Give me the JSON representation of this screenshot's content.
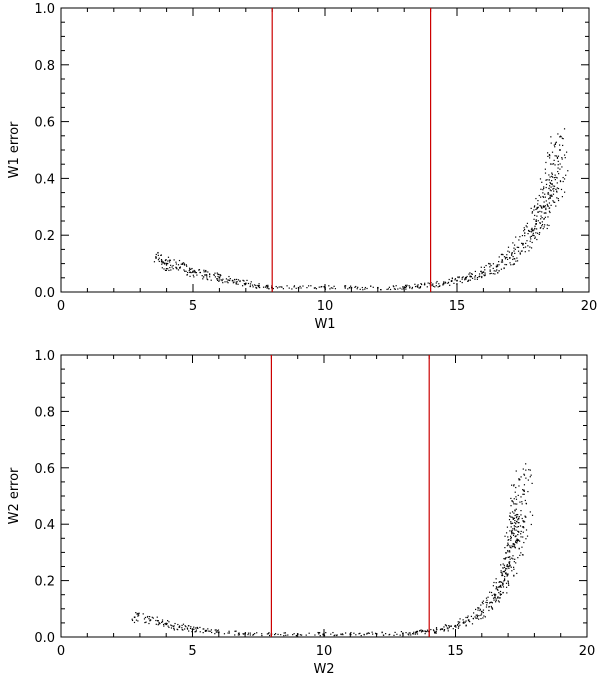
{
  "chart_data": [
    {
      "type": "scatter",
      "xlabel": "W1",
      "ylabel": "W1 error",
      "xlim": [
        0,
        20
      ],
      "ylim": [
        0,
        1.0
      ],
      "x_ticks": [
        "0",
        "5",
        "10",
        "15",
        "20"
      ],
      "y_ticks": [
        "0.0",
        "0.2",
        "0.4",
        "0.6",
        "0.8",
        "1.0"
      ],
      "vertical_lines": [
        8,
        14
      ],
      "vertical_line_color": "#cc0000",
      "point_color": "#000000",
      "series": [
        {
          "x": [
            3.6,
            4.0,
            4.5,
            5.0,
            5.5,
            6.0,
            6.5,
            7.0,
            7.5,
            8.0,
            9.0,
            10.0,
            11.0,
            12.0,
            13.0,
            13.5,
            14.0,
            14.5,
            15.0,
            15.5,
            16.0,
            16.5,
            17.0,
            17.5,
            18.0,
            18.3,
            18.6,
            18.9
          ],
          "y": [
            0.12,
            0.1,
            0.085,
            0.072,
            0.06,
            0.05,
            0.04,
            0.03,
            0.022,
            0.015,
            0.015,
            0.015,
            0.015,
            0.015,
            0.017,
            0.02,
            0.025,
            0.03,
            0.04,
            0.055,
            0.07,
            0.09,
            0.12,
            0.17,
            0.24,
            0.3,
            0.38,
            0.5
          ]
        }
      ]
    },
    {
      "type": "scatter",
      "xlabel": "W2",
      "ylabel": "W2 error",
      "xlim": [
        0,
        20
      ],
      "ylim": [
        0,
        1.0
      ],
      "x_ticks": [
        "0",
        "5",
        "10",
        "15",
        "20"
      ],
      "y_ticks": [
        "0.0",
        "0.2",
        "0.4",
        "0.6",
        "0.8",
        "1.0"
      ],
      "vertical_lines": [
        8,
        14
      ],
      "vertical_line_color": "#cc0000",
      "point_color": "#000000",
      "series": [
        {
          "x": [
            2.8,
            3.4,
            4.0,
            4.5,
            5.0,
            5.5,
            6.0,
            7.0,
            8.0,
            9.0,
            10.0,
            11.0,
            12.0,
            13.0,
            13.5,
            14.0,
            14.5,
            15.0,
            15.5,
            16.0,
            16.5,
            16.8,
            17.0,
            17.2,
            17.4,
            17.6
          ],
          "y": [
            0.07,
            0.06,
            0.045,
            0.035,
            0.028,
            0.022,
            0.017,
            0.012,
            0.01,
            0.01,
            0.01,
            0.01,
            0.011,
            0.013,
            0.016,
            0.02,
            0.028,
            0.04,
            0.06,
            0.09,
            0.14,
            0.19,
            0.25,
            0.33,
            0.42,
            0.52
          ]
        }
      ]
    }
  ]
}
